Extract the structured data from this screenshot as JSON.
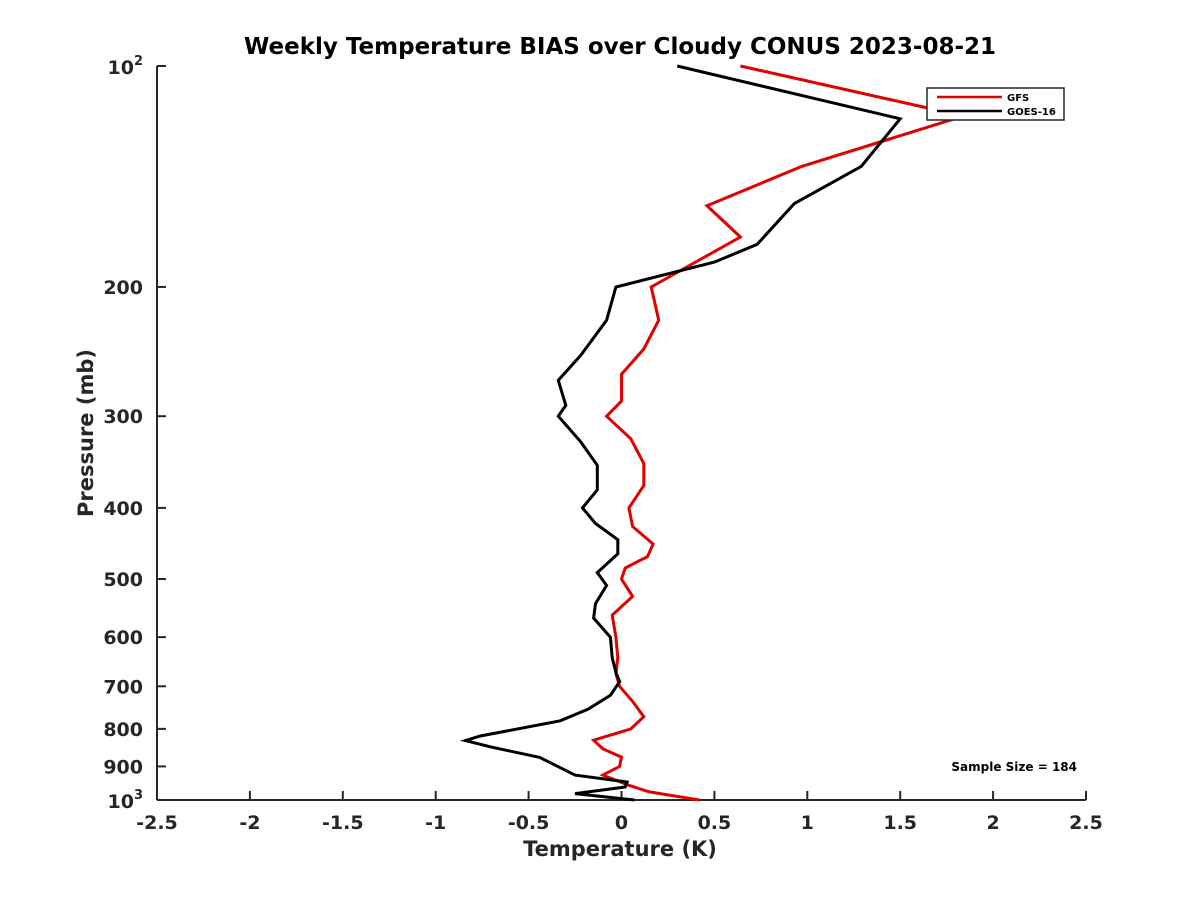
{
  "chart_data": {
    "type": "line",
    "title": "Weekly Temperature BIAS over Cloudy CONUS 2023-08-21",
    "xlabel": "Temperature (K)",
    "ylabel": "Pressure (mb)",
    "xlim": [
      -2.5,
      2.5
    ],
    "ylim": [
      100,
      1000
    ],
    "yscale": "log",
    "y_reversed": true,
    "grid": false,
    "legend_position": "top-right",
    "x_ticks": [
      -2.5,
      -2,
      -1.5,
      -1,
      -0.5,
      0,
      0.5,
      1,
      1.5,
      2,
      2.5
    ],
    "x_tick_labels": [
      "-2.5",
      "-2",
      "-1.5",
      "-1",
      "-0.5",
      "0",
      "0.5",
      "1",
      "1.5",
      "2",
      "2.5"
    ],
    "y_ticks": [
      200,
      300,
      400,
      500,
      600,
      700,
      800,
      900
    ],
    "y_tick_labels": [
      "200",
      "300",
      "400",
      "500",
      "600",
      "700",
      "800",
      "900"
    ],
    "y_power_ticks": [
      {
        "value": 100,
        "base": "10",
        "exponent": "2"
      },
      {
        "value": 1000,
        "base": "10",
        "exponent": "3"
      }
    ],
    "annotation": "Sample Size = 184",
    "series": [
      {
        "name": "GFS",
        "color": "#e00000",
        "points": [
          [
            0.64,
            100
          ],
          [
            1.84,
            117
          ],
          [
            0.97,
            137
          ],
          [
            0.46,
            155
          ],
          [
            0.64,
            171
          ],
          [
            0.16,
            200
          ],
          [
            0.2,
            222
          ],
          [
            0.12,
            243
          ],
          [
            0.0,
            263
          ],
          [
            0.0,
            286
          ],
          [
            -0.08,
            300
          ],
          [
            0.05,
            322
          ],
          [
            0.12,
            348
          ],
          [
            0.12,
            373
          ],
          [
            0.04,
            400
          ],
          [
            0.06,
            424
          ],
          [
            0.17,
            448
          ],
          [
            0.14,
            466
          ],
          [
            0.02,
            483
          ],
          [
            0.0,
            500
          ],
          [
            0.06,
            528
          ],
          [
            -0.05,
            560
          ],
          [
            -0.03,
            600
          ],
          [
            -0.02,
            640
          ],
          [
            -0.03,
            673
          ],
          [
            -0.01,
            700
          ],
          [
            0.06,
            734
          ],
          [
            0.12,
            770
          ],
          [
            0.05,
            800
          ],
          [
            -0.15,
            829
          ],
          [
            -0.1,
            852
          ],
          [
            0.0,
            874
          ],
          [
            -0.01,
            900
          ],
          [
            -0.1,
            925
          ],
          [
            0.04,
            955
          ],
          [
            0.15,
            975
          ],
          [
            0.42,
            1000
          ]
        ]
      },
      {
        "name": "GOES-16",
        "color": "#000000",
        "points": [
          [
            0.3,
            100
          ],
          [
            1.5,
            118
          ],
          [
            1.29,
            137
          ],
          [
            0.93,
            154
          ],
          [
            0.73,
            175
          ],
          [
            0.5,
            185
          ],
          [
            -0.03,
            200
          ],
          [
            -0.08,
            222
          ],
          [
            -0.22,
            248
          ],
          [
            -0.34,
            268
          ],
          [
            -0.3,
            290
          ],
          [
            -0.34,
            300
          ],
          [
            -0.22,
            325
          ],
          [
            -0.13,
            350
          ],
          [
            -0.13,
            378
          ],
          [
            -0.21,
            400
          ],
          [
            -0.14,
            420
          ],
          [
            -0.02,
            442
          ],
          [
            -0.02,
            462
          ],
          [
            -0.13,
            490
          ],
          [
            -0.08,
            510
          ],
          [
            -0.14,
            540
          ],
          [
            -0.15,
            565
          ],
          [
            -0.06,
            600
          ],
          [
            -0.05,
            640
          ],
          [
            -0.03,
            670
          ],
          [
            -0.01,
            690
          ],
          [
            -0.06,
            720
          ],
          [
            -0.18,
            752
          ],
          [
            -0.33,
            780
          ],
          [
            -0.76,
            818
          ],
          [
            -0.84,
            830
          ],
          [
            -0.7,
            847
          ],
          [
            -0.44,
            875
          ],
          [
            -0.25,
            925
          ],
          [
            0.03,
            945
          ],
          [
            0.02,
            960
          ],
          [
            -0.25,
            980
          ],
          [
            0.07,
            1000
          ]
        ]
      }
    ]
  }
}
